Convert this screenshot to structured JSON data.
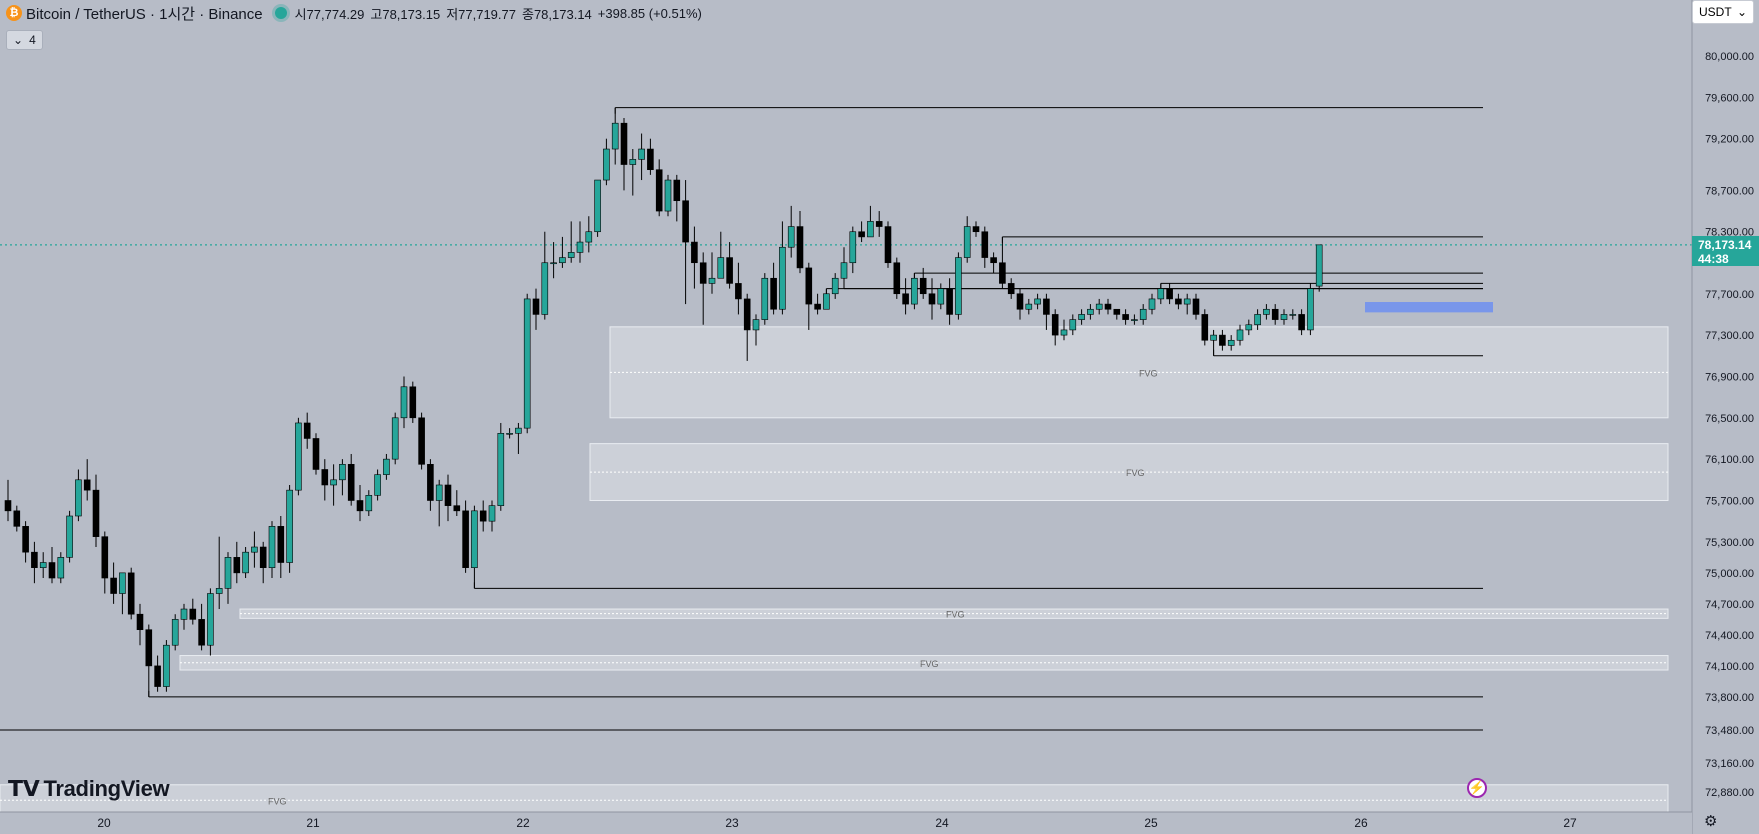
{
  "header": {
    "symbol_title": "Bitcoin / TetherUS · 1시간 · Binance",
    "btc_icon": "₿",
    "open": "시77,774.29",
    "high": "고78,173.15",
    "low": "저77,719.77",
    "close": "종78,173.14",
    "change": "+398.85 (+0.51%)",
    "indicator_count": "4"
  },
  "currency": "USDT",
  "price_tag": {
    "price": "78,173.14",
    "countdown": "44:38"
  },
  "logo": "TradingView",
  "fvg_label": "FVG",
  "colors": {
    "up": "#26a69a",
    "down": "#000000",
    "background": "#b7bcc7",
    "fvg_fill": "#d3d7de",
    "current": "#26a69a"
  },
  "chart_data": {
    "type": "candlestick",
    "title": "Bitcoin / TetherUS · 1시간 · Binance",
    "y_ticks": [
      80000,
      79600,
      79200,
      78700,
      78300,
      77700,
      77300,
      76900,
      76500,
      76100,
      75700,
      75300,
      75000,
      74700,
      74400,
      74100,
      73800,
      73480,
      73160,
      72880
    ],
    "y_tick_labels": [
      "80,000.00",
      "79,600.00",
      "79,200.00",
      "78,700.00",
      "78,300.00",
      "77,700.00",
      "77,300.00",
      "76,900.00",
      "76,500.00",
      "76,100.00",
      "75,700.00",
      "75,300.00",
      "75,000.00",
      "74,700.00",
      "74,400.00",
      "74,100.00",
      "73,800.00",
      "73,480.00",
      "73,160.00",
      "72,880.00"
    ],
    "x_tick_labels": [
      "20",
      "21",
      "22",
      "23",
      "24",
      "25",
      "26",
      "27"
    ],
    "candles": [
      [
        75700,
        75900,
        75500,
        75600
      ],
      [
        75600,
        75650,
        75400,
        75450
      ],
      [
        75450,
        75500,
        75100,
        75200
      ],
      [
        75200,
        75300,
        74900,
        75050
      ],
      [
        75050,
        75200,
        74950,
        75100
      ],
      [
        75100,
        75250,
        74900,
        74950
      ],
      [
        74950,
        75200,
        74900,
        75150
      ],
      [
        75150,
        75600,
        75100,
        75550
      ],
      [
        75550,
        76000,
        75500,
        75900
      ],
      [
        75900,
        76100,
        75700,
        75800
      ],
      [
        75800,
        75950,
        75250,
        75350
      ],
      [
        75350,
        75400,
        74800,
        74950
      ],
      [
        74950,
        75100,
        74700,
        74800
      ],
      [
        74800,
        75000,
        74600,
        75000
      ],
      [
        75000,
        75050,
        74550,
        74600
      ],
      [
        74600,
        74700,
        74300,
        74450
      ],
      [
        74450,
        74500,
        73800,
        74100
      ],
      [
        74100,
        74200,
        73850,
        73900
      ],
      [
        73900,
        74350,
        73850,
        74300
      ],
      [
        74300,
        74600,
        74250,
        74550
      ],
      [
        74550,
        74700,
        74450,
        74650
      ],
      [
        74650,
        74750,
        74500,
        74550
      ],
      [
        74550,
        74700,
        74250,
        74300
      ],
      [
        74300,
        74850,
        74200,
        74800
      ],
      [
        74800,
        75350,
        74650,
        74850
      ],
      [
        74850,
        75200,
        74700,
        75150
      ],
      [
        75150,
        75300,
        74900,
        75000
      ],
      [
        75000,
        75250,
        74950,
        75200
      ],
      [
        75200,
        75400,
        75050,
        75250
      ],
      [
        75250,
        75300,
        74900,
        75050
      ],
      [
        75050,
        75500,
        74950,
        75450
      ],
      [
        75450,
        75550,
        74950,
        75100
      ],
      [
        75100,
        75850,
        75000,
        75800
      ],
      [
        75800,
        76500,
        75750,
        76450
      ],
      [
        76450,
        76550,
        76200,
        76300
      ],
      [
        76300,
        76350,
        75950,
        76000
      ],
      [
        76000,
        76100,
        75700,
        75850
      ],
      [
        75850,
        76050,
        75650,
        75900
      ],
      [
        75900,
        76100,
        75750,
        76050
      ],
      [
        76050,
        76150,
        75650,
        75700
      ],
      [
        75700,
        75850,
        75500,
        75600
      ],
      [
        75600,
        75800,
        75550,
        75750
      ],
      [
        75750,
        76000,
        75700,
        75950
      ],
      [
        75950,
        76150,
        75900,
        76100
      ],
      [
        76100,
        76550,
        76050,
        76500
      ],
      [
        76500,
        76900,
        76400,
        76800
      ],
      [
        76800,
        76850,
        76450,
        76500
      ],
      [
        76500,
        76550,
        76000,
        76050
      ],
      [
        76050,
        76100,
        75600,
        75700
      ],
      [
        75700,
        75900,
        75450,
        75850
      ],
      [
        75850,
        75950,
        75500,
        75650
      ],
      [
        75650,
        75800,
        75550,
        75600
      ],
      [
        75600,
        75700,
        75000,
        75050
      ],
      [
        75050,
        75650,
        74850,
        75600
      ],
      [
        75600,
        75700,
        75400,
        75500
      ],
      [
        75500,
        75700,
        75400,
        75650
      ],
      [
        75650,
        76450,
        75600,
        76350
      ],
      [
        76350,
        76400,
        76300,
        76350
      ],
      [
        76350,
        76450,
        76150,
        76400
      ],
      [
        76400,
        77700,
        76350,
        77650
      ],
      [
        77650,
        77750,
        77350,
        77500
      ],
      [
        77500,
        78300,
        77450,
        78000
      ],
      [
        78000,
        78200,
        77850,
        78000
      ],
      [
        78000,
        78250,
        77950,
        78050
      ],
      [
        78050,
        78400,
        78000,
        78100
      ],
      [
        78100,
        78400,
        78000,
        78200
      ],
      [
        78200,
        78450,
        78100,
        78300
      ],
      [
        78300,
        78800,
        78250,
        78800
      ],
      [
        78800,
        79200,
        78750,
        79100
      ],
      [
        79100,
        79500,
        78950,
        79350
      ],
      [
        79350,
        79400,
        78700,
        78950
      ],
      [
        78950,
        79100,
        78650,
        79000
      ],
      [
        79000,
        79250,
        78800,
        79100
      ],
      [
        79100,
        79200,
        78850,
        78900
      ],
      [
        78900,
        79000,
        78450,
        78500
      ],
      [
        78500,
        78850,
        78450,
        78800
      ],
      [
        78800,
        78850,
        78400,
        78600
      ],
      [
        78600,
        78800,
        77600,
        78200
      ],
      [
        78200,
        78350,
        77750,
        78000
      ],
      [
        78000,
        78100,
        77400,
        77800
      ],
      [
        77800,
        78100,
        77700,
        77850
      ],
      [
        77850,
        78300,
        77850,
        78050
      ],
      [
        78050,
        78200,
        77750,
        77800
      ],
      [
        77800,
        78000,
        77500,
        77650
      ],
      [
        77650,
        77700,
        77050,
        77350
      ],
      [
        77350,
        77500,
        77200,
        77450
      ],
      [
        77450,
        77900,
        77400,
        77850
      ],
      [
        77850,
        78000,
        77500,
        77550
      ],
      [
        77550,
        78400,
        77500,
        78150
      ],
      [
        78150,
        78550,
        78050,
        78350
      ],
      [
        78350,
        78500,
        77900,
        77950
      ],
      [
        77950,
        78000,
        77350,
        77600
      ],
      [
        77600,
        77700,
        77500,
        77550
      ],
      [
        77550,
        77750,
        77550,
        77700
      ],
      [
        77700,
        77900,
        77650,
        77850
      ],
      [
        77850,
        78150,
        77750,
        78000
      ],
      [
        78000,
        78350,
        77900,
        78300
      ],
      [
        78300,
        78400,
        78200,
        78250
      ],
      [
        78250,
        78550,
        78250,
        78400
      ],
      [
        78400,
        78500,
        78250,
        78350
      ],
      [
        78350,
        78400,
        77950,
        78000
      ],
      [
        78000,
        78050,
        77650,
        77700
      ],
      [
        77700,
        77850,
        77500,
        77600
      ],
      [
        77600,
        77900,
        77550,
        77850
      ],
      [
        77850,
        77950,
        77650,
        77700
      ],
      [
        77700,
        77850,
        77450,
        77600
      ],
      [
        77600,
        77800,
        77550,
        77750
      ],
      [
        77750,
        77850,
        77400,
        77500
      ],
      [
        77500,
        78100,
        77450,
        78050
      ],
      [
        78050,
        78450,
        78000,
        78350
      ],
      [
        78350,
        78400,
        78250,
        78300
      ],
      [
        78300,
        78350,
        77950,
        78050
      ],
      [
        78050,
        78100,
        77900,
        78000
      ],
      [
        78000,
        78250,
        77750,
        77800
      ],
      [
        77800,
        77850,
        77650,
        77700
      ],
      [
        77700,
        77750,
        77450,
        77550
      ],
      [
        77550,
        77650,
        77500,
        77600
      ],
      [
        77600,
        77700,
        77550,
        77650
      ],
      [
        77650,
        77700,
        77350,
        77500
      ],
      [
        77500,
        77550,
        77200,
        77300
      ],
      [
        77300,
        77450,
        77250,
        77350
      ],
      [
        77350,
        77500,
        77300,
        77450
      ],
      [
        77450,
        77550,
        77400,
        77500
      ],
      [
        77500,
        77600,
        77450,
        77550
      ],
      [
        77550,
        77650,
        77500,
        77600
      ],
      [
        77600,
        77650,
        77500,
        77550
      ],
      [
        77550,
        77550,
        77450,
        77500
      ],
      [
        77500,
        77550,
        77400,
        77450
      ],
      [
        77450,
        77500,
        77400,
        77450
      ],
      [
        77450,
        77600,
        77400,
        77550
      ],
      [
        77550,
        77700,
        77500,
        77650
      ],
      [
        77650,
        77800,
        77600,
        77750
      ],
      [
        77750,
        77800,
        77600,
        77650
      ],
      [
        77650,
        77700,
        77550,
        77600
      ],
      [
        77600,
        77700,
        77500,
        77650
      ],
      [
        77650,
        77700,
        77450,
        77500
      ],
      [
        77500,
        77550,
        77200,
        77250
      ],
      [
        77250,
        77350,
        77100,
        77300
      ],
      [
        77300,
        77350,
        77150,
        77200
      ],
      [
        77200,
        77300,
        77150,
        77250
      ],
      [
        77250,
        77400,
        77200,
        77350
      ],
      [
        77350,
        77450,
        77300,
        77400
      ],
      [
        77400,
        77550,
        77350,
        77500
      ],
      [
        77500,
        77600,
        77450,
        77550
      ],
      [
        77550,
        77600,
        77400,
        77450
      ],
      [
        77450,
        77550,
        77400,
        77500
      ],
      [
        77500,
        77550,
        77450,
        77500
      ],
      [
        77500,
        77550,
        77300,
        77350
      ],
      [
        77350,
        77800,
        77300,
        77750
      ],
      [
        77774,
        78173,
        77720,
        78173
      ]
    ],
    "fvg_zones": [
      {
        "top": 77380,
        "bottom": 76500,
        "label": "FVG"
      },
      {
        "top": 76250,
        "bottom": 75700,
        "label": "FVG"
      },
      {
        "top": 74650,
        "bottom": 74560,
        "label": "FVG"
      },
      {
        "top": 74200,
        "bottom": 74060,
        "label": "FVG"
      },
      {
        "top": 72950,
        "bottom": 72650,
        "label": "FVG"
      }
    ],
    "current_price": 78173.14
  }
}
